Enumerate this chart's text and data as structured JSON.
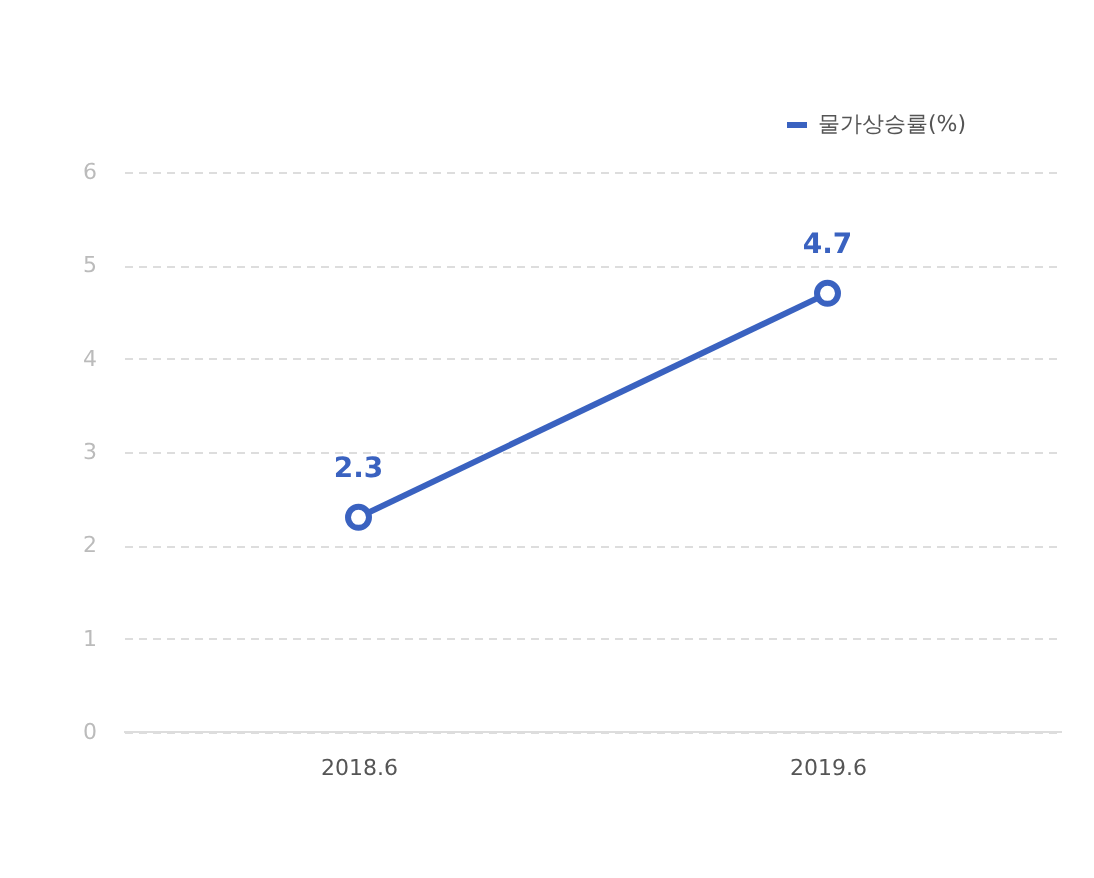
{
  "chart_data": {
    "type": "line",
    "categories": [
      "2018.6",
      "2019.6"
    ],
    "series": [
      {
        "name": "물가상승률(%)",
        "color": "#3a62c0",
        "values": [
          2.3,
          4.7
        ]
      }
    ],
    "ylim": [
      0,
      6
    ],
    "yticks": [
      0,
      1,
      2,
      3,
      4,
      5,
      6
    ],
    "grid": "y",
    "legend": "top right",
    "marker": "circle",
    "line_style": "solid",
    "data_labels": true
  }
}
